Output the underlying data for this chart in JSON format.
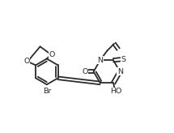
{
  "bg_color": "#ffffff",
  "line_color": "#2a2a2a",
  "line_width": 1.3,
  "font_size": 6.8,
  "figsize": [
    2.15,
    1.64
  ],
  "dpi": 100,
  "xlim": [
    0.0,
    1.0
  ],
  "ylim": [
    0.05,
    0.95
  ]
}
